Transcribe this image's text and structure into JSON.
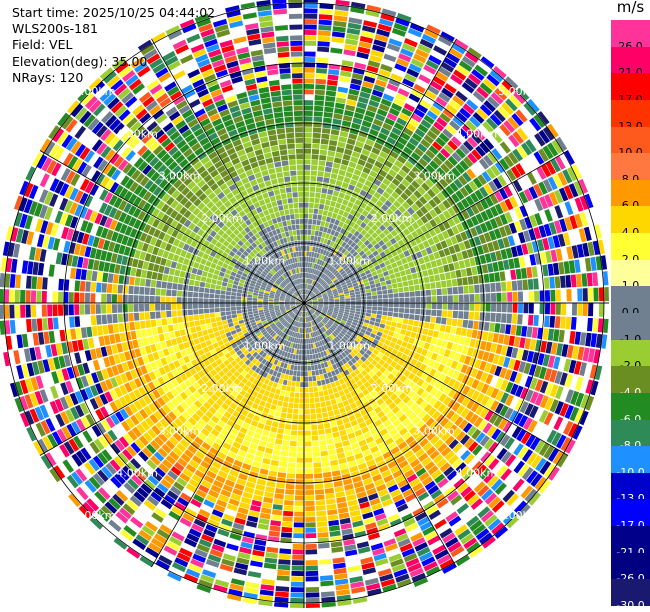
{
  "header": {
    "start_time": "Start time: 2025/10/25 04:44:02",
    "instrument": "WLS200s-181",
    "field": "Field: VEL",
    "elevation": "Elevation(deg): 35.00",
    "nrays": "NRays: 120"
  },
  "colorbar": {
    "unit": "m/s",
    "labels": [
      "26.0",
      "21.0",
      "17.0",
      "13.0",
      "10.0",
      "8.0",
      "6.0",
      "4.0",
      "2.0",
      "1.0",
      "0.0",
      "-1.0",
      "-2.0",
      "-4.0",
      "-6.0",
      "-8.0",
      "-10.0",
      "-13.0",
      "-17.0",
      "-21.0",
      "-26.0",
      "-30.0"
    ],
    "colors": [
      "#ff3399",
      "#ff0066",
      "#ff0000",
      "#ff3300",
      "#ff5a1e",
      "#ff7840",
      "#ff9900",
      "#ffd700",
      "#ffff33",
      "#ffff99",
      "#708090",
      "#708090",
      "#9acd32",
      "#6b8e23",
      "#228b22",
      "#2e8b57",
      "#1e90ff",
      "#0000cd",
      "#0000ff",
      "#00008b",
      "#000080",
      "#191970"
    ]
  },
  "chart_data": {
    "type": "ppi",
    "field": "VEL",
    "units": "m/s",
    "nrays": 120,
    "elevation_deg": 35.0,
    "range_rings_km": [
      1.0,
      2.0,
      3.0,
      4.0,
      5.0
    ],
    "ring_labels": [
      "1.00km",
      "2.00km",
      "3.00km",
      "4.00km",
      "5.00km"
    ],
    "color_scale_ticks": [
      26.0,
      21.0,
      17.0,
      13.0,
      10.0,
      8.0,
      6.0,
      4.0,
      2.0,
      1.0,
      0.0,
      -1.0,
      -2.0,
      -4.0,
      -6.0,
      -8.0,
      -10.0,
      -13.0,
      -17.0,
      -21.0,
      -26.0,
      -30.0
    ],
    "pattern_description_values": {
      "near_range_0_to_1km": "0.0 (gray) with patches of -2.0 (light green)",
      "north_1_to_3km": "-2.0 to -6.0 (greens)",
      "south_1_to_3km": "2.0 to 6.0 (yellow/orange)",
      "beyond_3.5km": "noise (mixed colors)"
    }
  }
}
